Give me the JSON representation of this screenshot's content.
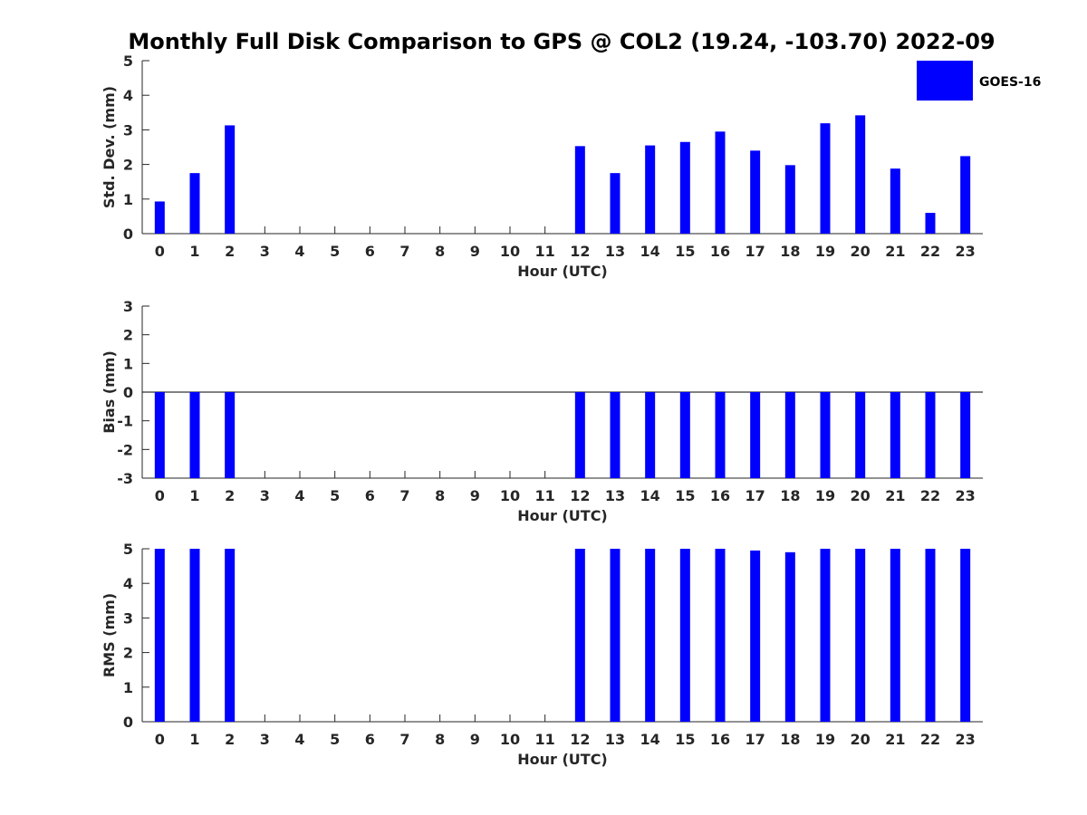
{
  "title": "Monthly Full Disk Comparison to GPS @ COL2 (19.24, -103.70) 2022-09",
  "legend": {
    "label": "GOES-16",
    "color": "#0000ff",
    "placement": "top-right"
  },
  "chart_data": [
    {
      "type": "bar",
      "xlabel": "Hour (UTC)",
      "ylabel": "Std. Dev. (mm)",
      "ylim": [
        0,
        5
      ],
      "yticks": [
        0,
        1,
        2,
        3,
        4,
        5
      ],
      "categories": [
        "0",
        "1",
        "2",
        "3",
        "4",
        "5",
        "6",
        "7",
        "8",
        "9",
        "10",
        "11",
        "12",
        "13",
        "14",
        "15",
        "16",
        "17",
        "18",
        "19",
        "20",
        "21",
        "22",
        "23"
      ],
      "series": [
        {
          "name": "GOES-16",
          "values": [
            0.93,
            1.75,
            3.13,
            null,
            null,
            null,
            null,
            null,
            null,
            null,
            null,
            null,
            2.53,
            1.75,
            2.55,
            2.65,
            2.95,
            2.4,
            1.98,
            3.19,
            3.42,
            1.88,
            0.6,
            2.24
          ]
        }
      ]
    },
    {
      "type": "bar",
      "xlabel": "Hour (UTC)",
      "ylabel": "Bias (mm)",
      "ylim": [
        -3,
        3
      ],
      "yticks": [
        -3,
        -2,
        -1,
        0,
        1,
        2,
        3
      ],
      "baseline_line": true,
      "categories": [
        "0",
        "1",
        "2",
        "3",
        "4",
        "5",
        "6",
        "7",
        "8",
        "9",
        "10",
        "11",
        "12",
        "13",
        "14",
        "15",
        "16",
        "17",
        "18",
        "19",
        "20",
        "21",
        "22",
        "23"
      ],
      "series": [
        {
          "name": "GOES-16",
          "values": [
            -3,
            -3,
            -3,
            null,
            null,
            null,
            null,
            null,
            null,
            null,
            null,
            null,
            -3,
            -3,
            -3,
            -3,
            -3,
            -3,
            -3,
            -3,
            -3,
            -3,
            -3,
            -3
          ]
        }
      ]
    },
    {
      "type": "bar",
      "xlabel": "Hour (UTC)",
      "ylabel": "RMS (mm)",
      "ylim": [
        0,
        5
      ],
      "yticks": [
        0,
        1,
        2,
        3,
        4,
        5
      ],
      "categories": [
        "0",
        "1",
        "2",
        "3",
        "4",
        "5",
        "6",
        "7",
        "8",
        "9",
        "10",
        "11",
        "12",
        "13",
        "14",
        "15",
        "16",
        "17",
        "18",
        "19",
        "20",
        "21",
        "22",
        "23"
      ],
      "series": [
        {
          "name": "GOES-16",
          "values": [
            5,
            5,
            5,
            null,
            null,
            null,
            null,
            null,
            null,
            null,
            null,
            null,
            5,
            5,
            5,
            5,
            5,
            4.95,
            4.9,
            5,
            5,
            5,
            5,
            5
          ]
        }
      ]
    }
  ]
}
